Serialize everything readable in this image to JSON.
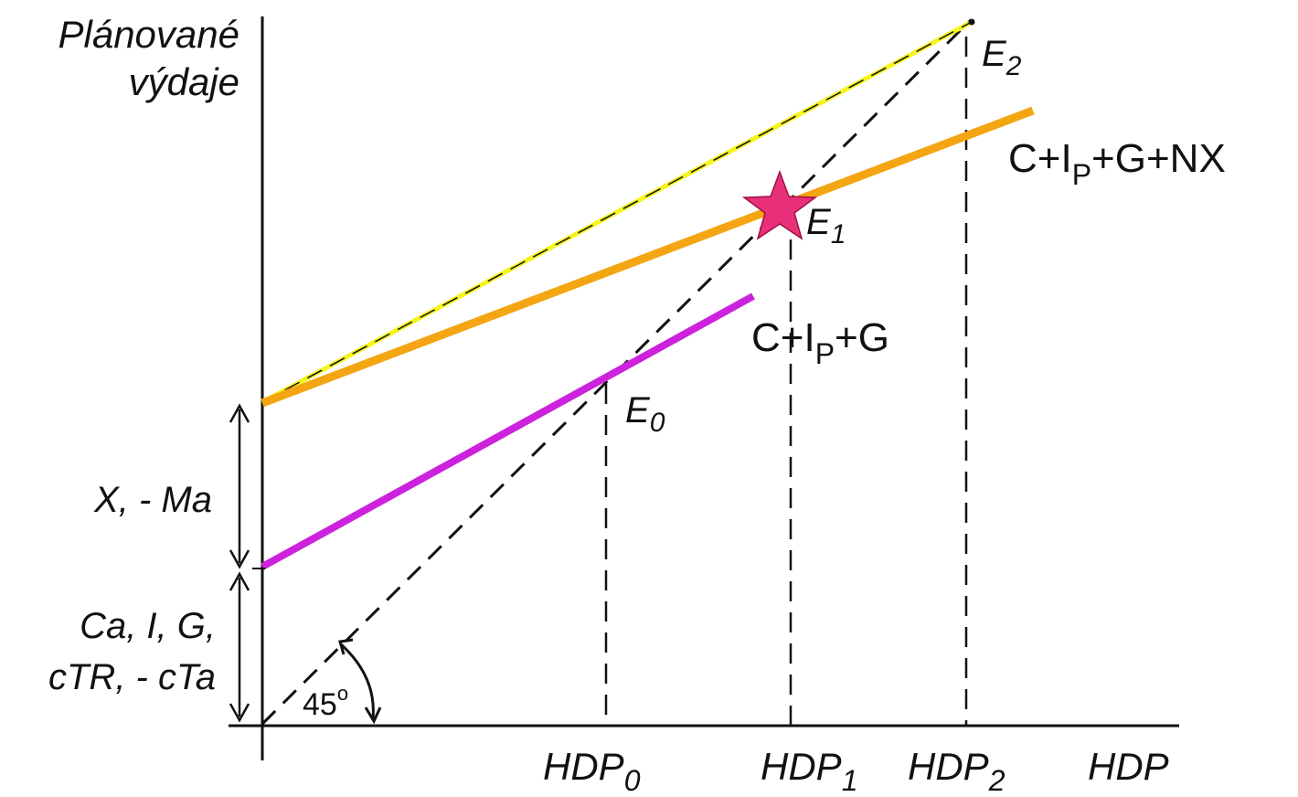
{
  "axes": {
    "y_label_line1": "Plánované",
    "y_label_line2": "výdaje",
    "x_label": "HDP"
  },
  "x_ticks": [
    {
      "base": "HDP",
      "sub": "0"
    },
    {
      "base": "HDP",
      "sub": "1"
    },
    {
      "base": "HDP",
      "sub": "2"
    }
  ],
  "points": [
    {
      "base": "E",
      "sub": "0"
    },
    {
      "base": "E",
      "sub": "1"
    },
    {
      "base": "E",
      "sub": "2"
    }
  ],
  "curves": {
    "domestic": {
      "label_a": "C+I",
      "label_sub": "P",
      "label_b": "+G",
      "color": "#cc22dd"
    },
    "total": {
      "label_a": "C+I",
      "label_sub": "P",
      "label_b": "+G+NX",
      "color": "#f4a512"
    },
    "shifted": {
      "color": "#f5f51a"
    }
  },
  "intercepts": {
    "upper": "X, - Ma",
    "lower_line1": "Ca, I, G,",
    "lower_line2": "cTR, - cTa"
  },
  "angle_label": "45",
  "angle_degree_mark": "o",
  "star_color": "#e8307a"
}
